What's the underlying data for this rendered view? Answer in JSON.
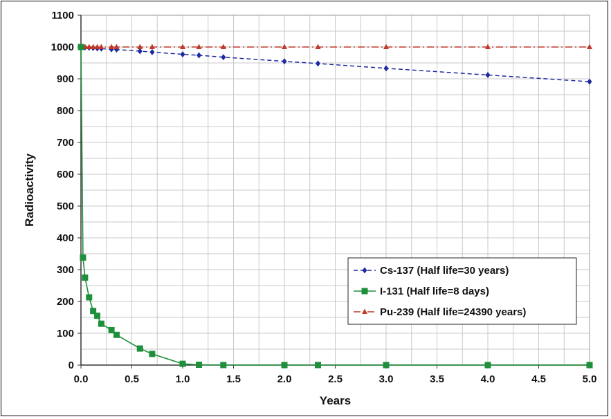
{
  "chart_data": {
    "type": "line",
    "title": "",
    "xlabel": "Years",
    "ylabel": "Radioactivity",
    "xlim": [
      0,
      5
    ],
    "ylim": [
      0,
      1100
    ],
    "x_ticks": [
      "0.0",
      "0.5",
      "1.0",
      "1.5",
      "2.0",
      "2.5",
      "3.0",
      "3.5",
      "4.0",
      "4.5",
      "5.0"
    ],
    "y_ticks": [
      "0",
      "100",
      "200",
      "300",
      "400",
      "500",
      "600",
      "700",
      "800",
      "900",
      "1000",
      "1100"
    ],
    "grid": true,
    "legend_position": "bottom-right",
    "series": [
      {
        "name": "Cs-137 (Half life=30 years)",
        "color": "#1f2a9e",
        "line_style": "dashed",
        "marker": "diamond",
        "x": [
          0,
          0.02,
          0.04,
          0.08,
          0.12,
          0.16,
          0.2,
          0.3,
          0.35,
          0.58,
          0.7,
          1.0,
          1.16,
          1.4,
          2.0,
          2.33,
          3.0,
          4.0,
          5.0
        ],
        "y": [
          1000,
          999.5,
          999,
          998,
          997,
          996,
          995,
          993,
          992,
          987,
          984,
          977,
          974,
          968,
          955,
          948,
          933,
          912,
          891
        ]
      },
      {
        "name": "I-131 (Half life=8 days)",
        "color": "#1e8f3a",
        "line_style": "solid",
        "marker": "square",
        "x": [
          0,
          0.02,
          0.04,
          0.08,
          0.12,
          0.16,
          0.2,
          0.3,
          0.35,
          0.58,
          0.7,
          1.0,
          1.16,
          1.4,
          2.0,
          2.33,
          3.0,
          4.0,
          5.0
        ],
        "y": [
          1000,
          338,
          275,
          213,
          170,
          155,
          130,
          110,
          95,
          52,
          35,
          4,
          1,
          0,
          0,
          0,
          0,
          0,
          0
        ]
      },
      {
        "name": "Pu-239 (Half life=24390 years)",
        "color": "#c0392b",
        "line_style": "dash-dot",
        "marker": "triangle",
        "x": [
          0,
          0.02,
          0.04,
          0.08,
          0.12,
          0.16,
          0.2,
          0.3,
          0.35,
          0.58,
          0.7,
          1.0,
          1.16,
          1.4,
          2.0,
          2.33,
          3.0,
          4.0,
          5.0
        ],
        "y": [
          1000,
          1000,
          1000,
          1000,
          1000,
          1000,
          1000,
          1000,
          1000,
          1000,
          1000,
          1000,
          1000,
          1000,
          1000,
          1000,
          1000,
          1000,
          1000
        ]
      }
    ]
  }
}
